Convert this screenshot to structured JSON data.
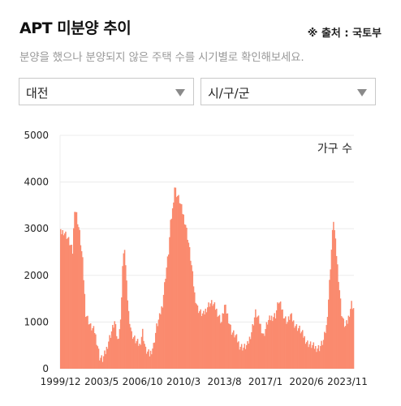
{
  "header": {
    "title": "APT 미분양 추이",
    "source": "※ 출처 : 국토부",
    "description": "분양을 했으나 분양되지 않은 주택 수를 시기별로 확인해보세요."
  },
  "filters": {
    "region": {
      "selected": "대전"
    },
    "district": {
      "selected": "시/구/군"
    }
  },
  "colors": {
    "bar": "#fa8a6e",
    "bar_edge": "#f4744f",
    "grid": "#ececec"
  },
  "chart_data": {
    "type": "bar",
    "title": "",
    "xlabel": "",
    "ylabel": "",
    "legend": {
      "label": "가구 수",
      "position": "top-right"
    },
    "ylim": [
      0,
      5000
    ],
    "yticks": [
      0,
      1000,
      2000,
      3000,
      4000,
      5000
    ],
    "xticks": [
      "1999/12",
      "2003/5",
      "2006/10",
      "2010/3",
      "2013/8",
      "2017/1",
      "2020/6",
      "2023/11"
    ],
    "grid": true,
    "x_start": "1999/12",
    "x_end": "2024/5",
    "series_anchors": {
      "name": "",
      "points": [
        [
          "1999/12",
          2900
        ],
        [
          "2000/3",
          2950
        ],
        [
          "2000/6",
          2850
        ],
        [
          "2000/9",
          2700
        ],
        [
          "2000/12",
          2500
        ],
        [
          "2001/2",
          3450
        ],
        [
          "2001/4",
          3300
        ],
        [
          "2001/7",
          2900
        ],
        [
          "2001/10",
          2300
        ],
        [
          "2002/1",
          1200
        ],
        [
          "2002/6",
          900
        ],
        [
          "2002/10",
          800
        ],
        [
          "2003/1",
          500
        ],
        [
          "2003/3",
          250
        ],
        [
          "2003/6",
          200
        ],
        [
          "2003/9",
          350
        ],
        [
          "2003/12",
          600
        ],
        [
          "2004/3",
          800
        ],
        [
          "2004/6",
          1000
        ],
        [
          "2004/9",
          600
        ],
        [
          "2004/12",
          1000
        ],
        [
          "2005/2",
          2200
        ],
        [
          "2005/4",
          2600
        ],
        [
          "2005/6",
          1800
        ],
        [
          "2005/8",
          1200
        ],
        [
          "2005/11",
          750
        ],
        [
          "2006/3",
          600
        ],
        [
          "2006/7",
          500
        ],
        [
          "2006/10",
          800
        ],
        [
          "2007/1",
          400
        ],
        [
          "2007/5",
          300
        ],
        [
          "2007/9",
          500
        ],
        [
          "2007/12",
          900
        ],
        [
          "2008/3",
          1100
        ],
        [
          "2008/6",
          1400
        ],
        [
          "2008/9",
          2000
        ],
        [
          "2008/12",
          2500
        ],
        [
          "2009/2",
          3100
        ],
        [
          "2009/4",
          3400
        ],
        [
          "2009/6",
          3900
        ],
        [
          "2009/8",
          3750
        ],
        [
          "2009/11",
          3600
        ],
        [
          "2010/2",
          3350
        ],
        [
          "2010/5",
          3100
        ],
        [
          "2010/8",
          2700
        ],
        [
          "2010/11",
          2200
        ],
        [
          "2011/2",
          1600
        ],
        [
          "2011/5",
          1300
        ],
        [
          "2011/8",
          1200
        ],
        [
          "2011/11",
          1150
        ],
        [
          "2012/2",
          1300
        ],
        [
          "2012/5",
          1400
        ],
        [
          "2012/8",
          1400
        ],
        [
          "2012/11",
          1300
        ],
        [
          "2013/2",
          1150
        ],
        [
          "2013/5",
          1000
        ],
        [
          "2013/8",
          1350
        ],
        [
          "2013/11",
          1150
        ],
        [
          "2014/3",
          800
        ],
        [
          "2014/7",
          700
        ],
        [
          "2014/11",
          500
        ],
        [
          "2015/3",
          450
        ],
        [
          "2015/7",
          500
        ],
        [
          "2015/11",
          800
        ],
        [
          "2016/3",
          1200
        ],
        [
          "2016/7",
          1000
        ],
        [
          "2016/11",
          700
        ],
        [
          "2017/3",
          1000
        ],
        [
          "2017/7",
          1100
        ],
        [
          "2017/11",
          1150
        ],
        [
          "2018/2",
          1450
        ],
        [
          "2018/5",
          1300
        ],
        [
          "2018/8",
          1100
        ],
        [
          "2018/11",
          1000
        ],
        [
          "2019/2",
          1150
        ],
        [
          "2019/5",
          1000
        ],
        [
          "2019/8",
          900
        ],
        [
          "2019/11",
          850
        ],
        [
          "2020/3",
          700
        ],
        [
          "2020/7",
          550
        ],
        [
          "2020/11",
          500
        ],
        [
          "2021/3",
          450
        ],
        [
          "2021/7",
          450
        ],
        [
          "2021/11",
          600
        ],
        [
          "2022/2",
          900
        ],
        [
          "2022/4",
          1500
        ],
        [
          "2022/6",
          2200
        ],
        [
          "2022/8",
          2900
        ],
        [
          "2022/9",
          3200
        ],
        [
          "2022/11",
          2700
        ],
        [
          "2023/1",
          2200
        ],
        [
          "2023/3",
          1700
        ],
        [
          "2023/5",
          1200
        ],
        [
          "2023/7",
          1000
        ],
        [
          "2023/9",
          900
        ],
        [
          "2023/11",
          1000
        ],
        [
          "2024/1",
          1200
        ],
        [
          "2024/3",
          1400
        ],
        [
          "2024/5",
          1300
        ]
      ]
    }
  }
}
